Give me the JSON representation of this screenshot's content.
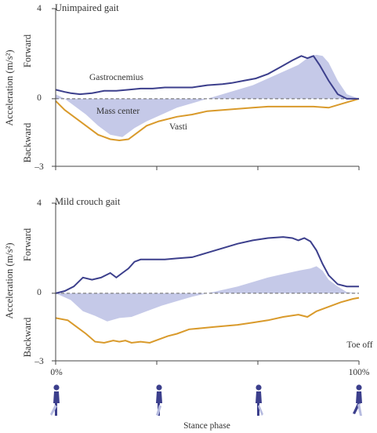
{
  "colors": {
    "gastrocnemius": "#3c3f8c",
    "vasti": "#d99a2b",
    "mass_center": "#c5c9e8",
    "axis": "#444444"
  },
  "figure": {
    "x_label": "Stance phase",
    "end_label": "Toe off"
  },
  "chart_data": [
    {
      "type": "line",
      "title": "Unimpaired gait",
      "ylabel": "Acceleration (m/s²)",
      "ylabel_top": "Forward",
      "ylabel_bottom": "Backward",
      "ylim": [
        -3,
        4
      ],
      "xlim": [
        0,
        100
      ],
      "yticks": [
        "4",
        "0",
        "–3"
      ],
      "series": [
        {
          "name": "Gastrocnemius",
          "style": "line",
          "x": [
            0,
            3,
            5,
            8,
            12,
            16,
            20,
            24,
            28,
            32,
            36,
            40,
            45,
            50,
            55,
            58,
            62,
            66,
            70,
            74,
            78,
            81,
            83,
            85,
            87,
            90,
            93,
            96,
            100
          ],
          "values": [
            0.4,
            0.3,
            0.25,
            0.2,
            0.25,
            0.35,
            0.35,
            0.4,
            0.45,
            0.45,
            0.5,
            0.5,
            0.5,
            0.6,
            0.65,
            0.7,
            0.8,
            0.9,
            1.1,
            1.4,
            1.7,
            1.9,
            1.8,
            1.9,
            1.5,
            0.8,
            0.2,
            0.0,
            0.0
          ]
        },
        {
          "name": "Vasti",
          "style": "line",
          "x": [
            0,
            3,
            6,
            10,
            14,
            18,
            21,
            24,
            27,
            30,
            34,
            40,
            45,
            50,
            55,
            60,
            65,
            70,
            75,
            80,
            85,
            90,
            95,
            100
          ],
          "values": [
            -0.1,
            -0.5,
            -0.8,
            -1.2,
            -1.6,
            -1.8,
            -1.85,
            -1.8,
            -1.5,
            -1.2,
            -1.0,
            -0.8,
            -0.7,
            -0.55,
            -0.5,
            -0.45,
            -0.4,
            -0.35,
            -0.35,
            -0.35,
            -0.35,
            -0.4,
            -0.2,
            0.0
          ]
        },
        {
          "name": "Mass center",
          "style": "area",
          "x": [
            0,
            3,
            6,
            10,
            14,
            18,
            22,
            26,
            30,
            35,
            40,
            45,
            50,
            55,
            60,
            65,
            70,
            75,
            80,
            84,
            86,
            88,
            90,
            93,
            96,
            100
          ],
          "values": [
            0.2,
            0.0,
            -0.3,
            -0.7,
            -1.2,
            -1.6,
            -1.7,
            -1.3,
            -1.0,
            -0.7,
            -0.4,
            -0.2,
            0.0,
            0.2,
            0.4,
            0.6,
            0.9,
            1.2,
            1.5,
            1.9,
            1.95,
            1.9,
            1.6,
            0.8,
            0.2,
            0.0
          ]
        }
      ],
      "annotations": [
        "Gastrocnemius",
        "Mass center",
        "Vasti"
      ]
    },
    {
      "type": "line",
      "title": "Mild crouch gait",
      "ylabel": "Acceleration (m/s²)",
      "ylabel_top": "Forward",
      "ylabel_bottom": "Backward",
      "ylim": [
        -3,
        4
      ],
      "xlim": [
        0,
        100
      ],
      "yticks": [
        "4",
        "0",
        "–3"
      ],
      "xticks": [
        "0%",
        "100%"
      ],
      "series": [
        {
          "name": "Gastrocnemius",
          "style": "line",
          "x": [
            0,
            3,
            6,
            9,
            12,
            15,
            18,
            20,
            22,
            24,
            26,
            28,
            30,
            33,
            36,
            40,
            45,
            50,
            55,
            60,
            65,
            70,
            75,
            78,
            80,
            82,
            84,
            86,
            88,
            90,
            93,
            96,
            100
          ],
          "values": [
            0.0,
            0.1,
            0.3,
            0.7,
            0.6,
            0.7,
            0.9,
            0.7,
            0.9,
            1.1,
            1.4,
            1.5,
            1.5,
            1.5,
            1.5,
            1.55,
            1.6,
            1.8,
            2.0,
            2.2,
            2.35,
            2.45,
            2.5,
            2.45,
            2.35,
            2.45,
            2.3,
            1.9,
            1.3,
            0.8,
            0.4,
            0.3,
            0.3
          ]
        },
        {
          "name": "Vasti",
          "style": "line",
          "x": [
            0,
            4,
            7,
            10,
            13,
            16,
            19,
            21,
            23,
            25,
            28,
            31,
            34,
            37,
            40,
            44,
            48,
            52,
            56,
            60,
            65,
            70,
            75,
            80,
            83,
            86,
            90,
            94,
            98,
            100
          ],
          "values": [
            -1.1,
            -1.2,
            -1.5,
            -1.8,
            -2.15,
            -2.2,
            -2.1,
            -2.15,
            -2.1,
            -2.2,
            -2.15,
            -2.2,
            -2.05,
            -1.9,
            -1.8,
            -1.6,
            -1.55,
            -1.5,
            -1.45,
            -1.4,
            -1.3,
            -1.2,
            -1.05,
            -0.95,
            -1.05,
            -0.8,
            -0.6,
            -0.4,
            -0.25,
            -0.2
          ]
        },
        {
          "name": "Mass center",
          "style": "area",
          "x": [
            0,
            5,
            9,
            13,
            17,
            21,
            25,
            30,
            35,
            40,
            45,
            50,
            55,
            60,
            65,
            70,
            75,
            80,
            84,
            86,
            88,
            90,
            93,
            96,
            100
          ],
          "values": [
            0.0,
            -0.3,
            -0.8,
            -1.0,
            -1.25,
            -1.1,
            -1.05,
            -0.8,
            -0.55,
            -0.35,
            -0.15,
            0.0,
            0.15,
            0.3,
            0.5,
            0.7,
            0.85,
            1.0,
            1.1,
            1.2,
            1.0,
            0.6,
            0.3,
            0.05,
            0.0
          ]
        }
      ]
    }
  ]
}
